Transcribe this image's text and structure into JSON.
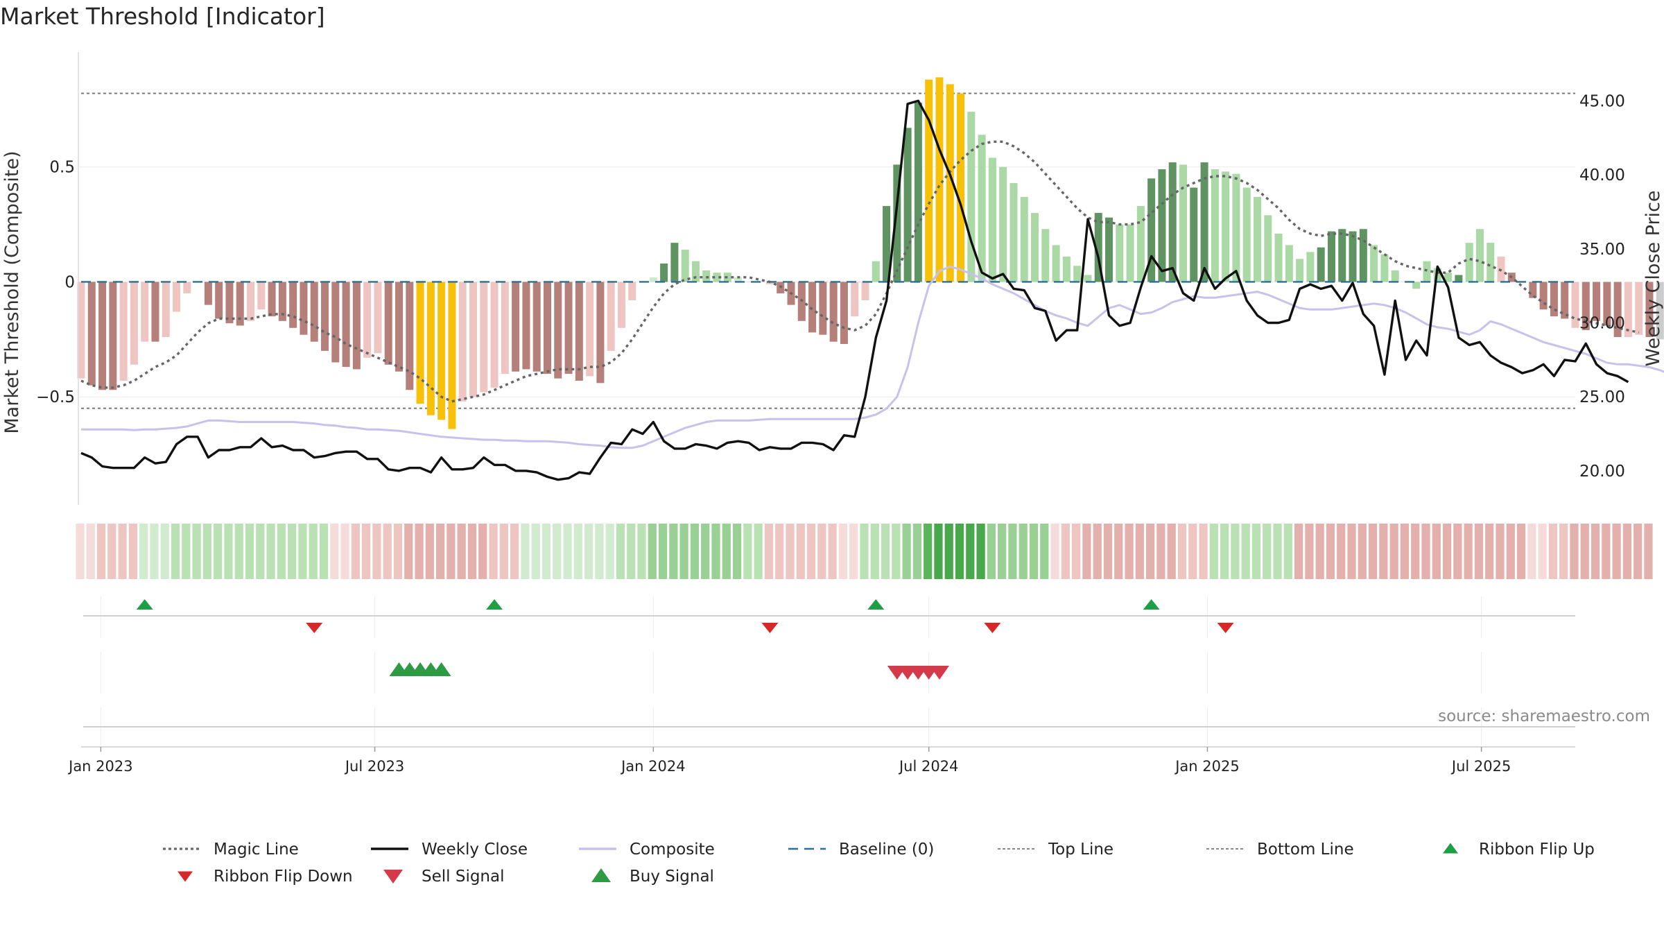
{
  "title": "Market Threshold [Indicator]",
  "source": "source: sharemaestro.com",
  "chart_data": {
    "type": "bar",
    "ylabel_left": "Market Threshold (Composite)",
    "ylabel_right": "Weekly Close Price",
    "left_ticks": [
      {
        "value": 0.5,
        "label": "0.5"
      },
      {
        "value": 0,
        "label": "0"
      },
      {
        "value": -0.5,
        "label": "−0.5"
      }
    ],
    "ylim_left": [
      -0.97,
      1.0
    ],
    "right_ticks": [
      {
        "value": 20,
        "label": "20.00"
      },
      {
        "value": 25,
        "label": "25.00"
      },
      {
        "value": 30,
        "label": "30.00"
      },
      {
        "value": 35,
        "label": "35.00"
      },
      {
        "value": 40,
        "label": "40.00"
      },
      {
        "value": 45,
        "label": "45.00"
      }
    ],
    "ylim_right": [
      17.7,
      48.3
    ],
    "top_line": 0.82,
    "bottom_line": -0.55,
    "date_start": "2022-12-19",
    "xlim": [
      "2022-12-19",
      "2025-09-01"
    ],
    "x_ticks": [
      {
        "date": "2023-01-01",
        "label": "Jan 2023"
      },
      {
        "date": "2023-07-01",
        "label": "Jul 2023"
      },
      {
        "date": "2024-01-01",
        "label": "Jan 2024"
      },
      {
        "date": "2024-07-01",
        "label": "Jul 2024"
      },
      {
        "date": "2025-01-01",
        "label": "Jan 2025"
      },
      {
        "date": "2025-07-01",
        "label": "Jul 2025"
      }
    ],
    "composite": [
      -0.42,
      -0.45,
      -0.47,
      -0.47,
      -0.43,
      -0.36,
      -0.26,
      -0.26,
      -0.24,
      -0.13,
      -0.05,
      0.0,
      -0.1,
      -0.16,
      -0.18,
      -0.19,
      -0.17,
      -0.12,
      -0.15,
      -0.17,
      -0.2,
      -0.23,
      -0.26,
      -0.3,
      -0.35,
      -0.37,
      -0.38,
      -0.33,
      -0.31,
      -0.36,
      -0.39,
      -0.47,
      -0.53,
      -0.58,
      -0.6,
      -0.64,
      -0.52,
      -0.5,
      -0.48,
      -0.46,
      -0.4,
      -0.39,
      -0.38,
      -0.39,
      -0.4,
      -0.42,
      -0.4,
      -0.43,
      -0.41,
      -0.44,
      -0.3,
      -0.2,
      -0.08,
      0.0,
      0.02,
      0.08,
      0.17,
      0.14,
      0.09,
      0.05,
      0.04,
      0.04,
      0.02,
      0.0,
      0.0,
      -0.01,
      -0.05,
      -0.1,
      -0.17,
      -0.22,
      -0.23,
      -0.26,
      -0.27,
      -0.15,
      -0.08,
      0.09,
      0.33,
      0.51,
      0.67,
      0.78,
      0.88,
      0.89,
      0.86,
      0.82,
      0.74,
      0.64,
      0.54,
      0.5,
      0.43,
      0.37,
      0.3,
      0.23,
      0.16,
      0.11,
      0.07,
      0.03,
      0.3,
      0.28,
      0.25,
      0.25,
      0.33,
      0.45,
      0.49,
      0.52,
      0.51,
      0.41,
      0.52,
      0.49,
      0.48,
      0.47,
      0.41,
      0.37,
      0.29,
      0.21,
      0.16,
      0.1,
      0.13,
      0.15,
      0.22,
      0.23,
      0.22,
      0.23,
      0.16,
      0.12,
      0.05,
      0.0,
      -0.03,
      0.09,
      0.06,
      0.04,
      0.03,
      0.17,
      0.23,
      0.17,
      0.11,
      0.04,
      0.0,
      -0.07,
      -0.12,
      -0.15,
      -0.16,
      -0.2,
      -0.21,
      -0.17,
      -0.19,
      -0.24,
      -0.24,
      -0.23,
      -0.24,
      -0.25
    ],
    "bar_colors": [
      "#eec5c0",
      "#b57f7a",
      "#b57f7a",
      "#b57f7a",
      "#eec5c0",
      "#eec5c0",
      "#eec5c0",
      "#b57f7a",
      "#eec5c0",
      "#eec5c0",
      "#eec5c0",
      "#eec5c0",
      "#b57f7a",
      "#b57f7a",
      "#b57f7a",
      "#b57f7a",
      "#eec5c0",
      "#eec5c0",
      "#b57f7a",
      "#b57f7a",
      "#b57f7a",
      "#b57f7a",
      "#b57f7a",
      "#b57f7a",
      "#b57f7a",
      "#b57f7a",
      "#b57f7a",
      "#eec5c0",
      "#eec5c0",
      "#b57f7a",
      "#b57f7a",
      "#b57f7a",
      "#f7c10a",
      "#f7c10a",
      "#f7c10a",
      "#f7c10a",
      "#eec5c0",
      "#eec5c0",
      "#eec5c0",
      "#eec5c0",
      "#eec5c0",
      "#b57f7a",
      "#b57f7a",
      "#b57f7a",
      "#b57f7a",
      "#b57f7a",
      "#b57f7a",
      "#b57f7a",
      "#eec5c0",
      "#b57f7a",
      "#eec5c0",
      "#eec5c0",
      "#eec5c0",
      "#eec5c0",
      "#cfe9cc",
      "#5f9462",
      "#5f9462",
      "#aad9a5",
      "#aad9a5",
      "#aad9a5",
      "#aad9a5",
      "#aad9a5",
      "#cfe9cc",
      "#eec5c0",
      "#eec5c0",
      "#eec5c0",
      "#b57f7a",
      "#b57f7a",
      "#b57f7a",
      "#b57f7a",
      "#b57f7a",
      "#b57f7a",
      "#b57f7a",
      "#eec5c0",
      "#eec5c0",
      "#aad9a5",
      "#5f9462",
      "#5f9462",
      "#5f9462",
      "#5f9462",
      "#f7c10a",
      "#f7c10a",
      "#f7c10a",
      "#f7c10a",
      "#aad9a5",
      "#aad9a5",
      "#aad9a5",
      "#aad9a5",
      "#aad9a5",
      "#aad9a5",
      "#aad9a5",
      "#aad9a5",
      "#aad9a5",
      "#aad9a5",
      "#aad9a5",
      "#aad9a5",
      "#5f9462",
      "#5f9462",
      "#aad9a5",
      "#aad9a5",
      "#aad9a5",
      "#5f9462",
      "#5f9462",
      "#5f9462",
      "#aad9a5",
      "#5f9462",
      "#5f9462",
      "#aad9a5",
      "#aad9a5",
      "#aad9a5",
      "#aad9a5",
      "#aad9a5",
      "#aad9a5",
      "#aad9a5",
      "#aad9a5",
      "#aad9a5",
      "#aad9a5",
      "#5f9462",
      "#5f9462",
      "#5f9462",
      "#5f9462",
      "#5f9462",
      "#aad9a5",
      "#aad9a5",
      "#aad9a5",
      "#eec5c0",
      "#aad9a5",
      "#aad9a5",
      "#aad9a5",
      "#aad9a5",
      "#5f9462",
      "#aad9a5",
      "#aad9a5",
      "#aad9a5",
      "#eec5c0",
      "#b57f7a",
      "#b57f7a",
      "#b57f7a",
      "#b57f7a",
      "#b57f7a",
      "#b57f7a",
      "#eec5c0",
      "#b57f7a",
      "#b57f7a",
      "#b57f7a",
      "#b57f7a",
      "#eec5c0",
      "#eec5c0",
      "#b57f7a"
    ],
    "magic_line": [
      -0.43,
      -0.45,
      -0.46,
      -0.46,
      -0.45,
      -0.43,
      -0.4,
      -0.37,
      -0.35,
      -0.32,
      -0.27,
      -0.22,
      -0.18,
      -0.16,
      -0.16,
      -0.16,
      -0.16,
      -0.15,
      -0.14,
      -0.14,
      -0.15,
      -0.17,
      -0.19,
      -0.22,
      -0.24,
      -0.27,
      -0.29,
      -0.31,
      -0.33,
      -0.35,
      -0.37,
      -0.39,
      -0.42,
      -0.46,
      -0.5,
      -0.52,
      -0.51,
      -0.5,
      -0.49,
      -0.47,
      -0.45,
      -0.43,
      -0.41,
      -0.4,
      -0.39,
      -0.38,
      -0.38,
      -0.38,
      -0.37,
      -0.37,
      -0.35,
      -0.31,
      -0.25,
      -0.18,
      -0.11,
      -0.05,
      -0.01,
      0.01,
      0.02,
      0.02,
      0.02,
      0.02,
      0.02,
      0.02,
      0.01,
      0.0,
      -0.02,
      -0.05,
      -0.08,
      -0.12,
      -0.15,
      -0.18,
      -0.2,
      -0.21,
      -0.19,
      -0.14,
      -0.05,
      0.05,
      0.15,
      0.25,
      0.34,
      0.42,
      0.48,
      0.53,
      0.57,
      0.6,
      0.61,
      0.61,
      0.59,
      0.56,
      0.52,
      0.47,
      0.42,
      0.37,
      0.32,
      0.28,
      0.26,
      0.26,
      0.25,
      0.25,
      0.26,
      0.3,
      0.34,
      0.38,
      0.41,
      0.43,
      0.45,
      0.46,
      0.46,
      0.45,
      0.43,
      0.4,
      0.36,
      0.32,
      0.27,
      0.23,
      0.21,
      0.2,
      0.21,
      0.21,
      0.2,
      0.18,
      0.15,
      0.12,
      0.09,
      0.07,
      0.06,
      0.05,
      0.04,
      0.04,
      0.08,
      0.1,
      0.09,
      0.07,
      0.05,
      0.02,
      -0.02,
      -0.06,
      -0.09,
      -0.12,
      -0.14,
      -0.16,
      -0.17,
      -0.18,
      -0.19,
      -0.2,
      -0.21,
      -0.22
    ],
    "composite_line": [
      22.8,
      22.8,
      22.8,
      22.8,
      22.8,
      22.75,
      22.8,
      22.8,
      22.85,
      22.9,
      23.0,
      23.2,
      23.4,
      23.4,
      23.35,
      23.3,
      23.3,
      23.3,
      23.3,
      23.3,
      23.3,
      23.25,
      23.2,
      23.1,
      23.05,
      22.95,
      22.9,
      22.8,
      22.8,
      22.75,
      22.7,
      22.6,
      22.5,
      22.4,
      22.3,
      22.25,
      22.2,
      22.15,
      22.1,
      22.1,
      22.05,
      22.05,
      22.0,
      22.0,
      22.0,
      21.95,
      21.9,
      21.8,
      21.75,
      21.7,
      21.6,
      21.55,
      21.55,
      21.7,
      22.0,
      22.3,
      22.6,
      22.9,
      23.1,
      23.3,
      23.4,
      23.4,
      23.4,
      23.4,
      23.45,
      23.5,
      23.5,
      23.5,
      23.5,
      23.5,
      23.5,
      23.5,
      23.5,
      23.5,
      23.6,
      23.8,
      24.2,
      25.0,
      27.0,
      30.0,
      32.5,
      33.5,
      33.8,
      33.6,
      33.3,
      33.0,
      32.6,
      32.3,
      32.0,
      31.6,
      31.2,
      30.8,
      30.5,
      30.3,
      30.0,
      29.8,
      30.4,
      31.0,
      31.2,
      30.9,
      30.6,
      30.7,
      31.0,
      31.4,
      31.6,
      31.8,
      31.7,
      31.7,
      31.8,
      31.9,
      32.0,
      32.1,
      31.9,
      31.6,
      31.3,
      31.0,
      30.9,
      30.9,
      30.9,
      31.0,
      31.1,
      31.2,
      31.3,
      31.2,
      31.0,
      30.7,
      30.3,
      29.9,
      29.7,
      29.6,
      29.4,
      29.2,
      29.5,
      30.1,
      29.9,
      29.6,
      29.3,
      29.0,
      28.7,
      28.5,
      28.3,
      28.1,
      27.9,
      27.6,
      27.3,
      27.2,
      27.2,
      27.1,
      27.0,
      26.8,
      26.5
    ],
    "weekly_close": [
      21.2,
      20.9,
      20.3,
      20.2,
      20.2,
      20.2,
      20.9,
      20.5,
      20.6,
      21.8,
      22.3,
      22.3,
      20.9,
      21.4,
      21.4,
      21.6,
      21.6,
      22.2,
      21.6,
      21.7,
      21.4,
      21.4,
      20.9,
      21.0,
      21.2,
      21.3,
      21.3,
      20.8,
      20.8,
      20.1,
      20.0,
      20.2,
      20.2,
      19.9,
      20.9,
      20.1,
      20.1,
      20.2,
      20.9,
      20.4,
      20.4,
      20.0,
      20.0,
      19.9,
      19.6,
      19.4,
      19.5,
      19.9,
      19.8,
      20.9,
      21.9,
      21.8,
      22.8,
      22.5,
      23.3,
      22.0,
      21.5,
      21.5,
      21.8,
      21.7,
      21.5,
      21.9,
      22.0,
      21.9,
      21.4,
      21.6,
      21.5,
      21.5,
      21.9,
      21.9,
      21.8,
      21.4,
      22.4,
      22.3,
      25.0,
      29.0,
      31.5,
      38.0,
      44.8,
      45.0,
      43.7,
      41.7,
      40.0,
      38.0,
      35.5,
      33.4,
      33.0,
      33.3,
      32.3,
      32.2,
      31.0,
      30.8,
      28.8,
      29.5,
      29.5,
      37.0,
      34.4,
      30.5,
      29.8,
      30.0,
      32.4,
      34.5,
      33.5,
      33.7,
      32.0,
      31.5,
      33.7,
      32.3,
      33.0,
      33.5,
      31.5,
      30.5,
      30.0,
      30.0,
      30.2,
      32.3,
      32.6,
      32.3,
      32.5,
      31.5,
      32.7,
      30.6,
      29.8,
      26.5,
      31.5,
      27.5,
      28.8,
      27.8,
      33.8,
      32.4,
      29.0,
      28.5,
      28.7,
      27.8,
      27.3,
      27.0,
      26.6,
      26.8,
      27.2,
      26.4,
      27.5,
      27.4,
      28.6,
      27.2,
      26.6,
      26.4,
      26.0
    ],
    "ribbon_colors": [
      "#f5dcda",
      "#f5dcda",
      "#eec5c0",
      "#eec5c0",
      "#eec5c0",
      "#eec5c0",
      "#d0ebcd",
      "#d0ebcd",
      "#d0ebcd",
      "#b9e1b4",
      "#b9e1b4",
      "#b9e1b4",
      "#b9e1b4",
      "#b9e1b4",
      "#b9e1b4",
      "#b9e1b4",
      "#b9e1b4",
      "#b9e1b4",
      "#b9e1b4",
      "#b9e1b4",
      "#b9e1b4",
      "#b9e1b4",
      "#b9e1b4",
      "#b9e1b4",
      "#f5dcda",
      "#f5dcda",
      "#eec5c0",
      "#eec5c0",
      "#eec5c0",
      "#eec5c0",
      "#eec5c0",
      "#e3b0ab",
      "#e3b0ab",
      "#e3b0ab",
      "#e3b0ab",
      "#e3b0ab",
      "#e3b0ab",
      "#e3b0ab",
      "#e3b0ab",
      "#eec5c0",
      "#eec5c0",
      "#eec5c0",
      "#d0ebcd",
      "#d0ebcd",
      "#d0ebcd",
      "#d0ebcd",
      "#d0ebcd",
      "#d0ebcd",
      "#d0ebcd",
      "#d0ebcd",
      "#d0ebcd",
      "#b9e1b4",
      "#b9e1b4",
      "#b9e1b4",
      "#99d093",
      "#99d093",
      "#99d093",
      "#99d093",
      "#99d093",
      "#99d093",
      "#99d093",
      "#99d093",
      "#99d093",
      "#b9e1b4",
      "#b9e1b4",
      "#eec5c0",
      "#eec5c0",
      "#eec5c0",
      "#eec5c0",
      "#eec5c0",
      "#eec5c0",
      "#eec5c0",
      "#f5dcda",
      "#f5dcda",
      "#b9e1b4",
      "#b9e1b4",
      "#b9e1b4",
      "#b9e1b4",
      "#99d093",
      "#99d093",
      "#5bb45b",
      "#48a84b",
      "#48a84b",
      "#48a84b",
      "#48a84b",
      "#48a84b",
      "#99d093",
      "#99d093",
      "#99d093",
      "#99d093",
      "#99d093",
      "#99d093",
      "#f5dcda",
      "#eec5c0",
      "#eec5c0",
      "#e3b0ab",
      "#e3b0ab",
      "#e3b0ab",
      "#e3b0ab",
      "#e3b0ab",
      "#e3b0ab",
      "#e3b0ab",
      "#e3b0ab",
      "#e3b0ab",
      "#eec5c0",
      "#eec5c0",
      "#eec5c0",
      "#b9e1b4",
      "#b9e1b4",
      "#b9e1b4",
      "#b9e1b4",
      "#b9e1b4",
      "#b9e1b4",
      "#b9e1b4",
      "#b9e1b4",
      "#e3b0ab",
      "#e3b0ab",
      "#e3b0ab",
      "#e3b0ab",
      "#e3b0ab",
      "#e3b0ab",
      "#e3b0ab",
      "#e3b0ab",
      "#e3b0ab",
      "#e3b0ab",
      "#e3b0ab",
      "#e3b0ab",
      "#e3b0ab",
      "#e3b0ab",
      "#e3b0ab",
      "#e3b0ab",
      "#e3b0ab",
      "#e3b0ab",
      "#e3b0ab",
      "#e3b0ab",
      "#e3b0ab",
      "#e3b0ab",
      "#f5dcda",
      "#f5dcda",
      "#eec5c0",
      "#eec5c0",
      "#e3b0ab",
      "#e3b0ab",
      "#e3b0ab",
      "#e3b0ab",
      "#e3b0ab",
      "#e3b0ab",
      "#e3b0ab",
      "#e3b0ab"
    ],
    "ribbon_flip_up": [
      6,
      39,
      75,
      101
    ],
    "ribbon_flip_down": [
      22,
      65,
      86,
      108
    ],
    "buy_signals": [
      30,
      31,
      32,
      33,
      34
    ],
    "sell_signals": [
      77,
      78,
      79,
      80,
      81
    ],
    "legend": [
      {
        "label": "Magic Line",
        "kind": "dotted",
        "color": "#666666"
      },
      {
        "label": "Weekly Close",
        "kind": "line",
        "color": "#111111"
      },
      {
        "label": "Composite",
        "kind": "line",
        "color": "#c9c0ec"
      },
      {
        "label": "Baseline (0)",
        "kind": "dashed",
        "color": "#2a6f97"
      },
      {
        "label": "Top Line",
        "kind": "dotted-fine",
        "color": "#888888"
      },
      {
        "label": "Bottom Line",
        "kind": "dotted-fine",
        "color": "#888888"
      },
      {
        "label": "Ribbon Flip Up",
        "kind": "up-small",
        "color": "#1e9e45"
      },
      {
        "label": "Ribbon Flip Down",
        "kind": "down-small",
        "color": "#d62828"
      },
      {
        "label": "Sell Signal",
        "kind": "down-big",
        "color": "#d43a49"
      },
      {
        "label": "Buy Signal",
        "kind": "up-big",
        "color": "#2e9a44"
      }
    ],
    "grid": true,
    "legend_position": "bottom"
  }
}
